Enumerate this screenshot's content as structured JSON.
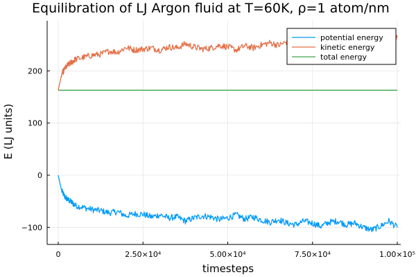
{
  "chart_data": {
    "type": "line",
    "title": "Equilibration of LJ Argon fluid at T=60K, ρ=1 atom/nm",
    "xlabel": "timesteps",
    "ylabel": "E (LJ units)",
    "xlim": [
      0,
      100000
    ],
    "ylim": [
      -130,
      295
    ],
    "grid": true,
    "legend_position": "top-right",
    "x_ticks": [
      {
        "value": 0,
        "label": "0"
      },
      {
        "value": 25000,
        "label": "2.50×10⁴"
      },
      {
        "value": 50000,
        "label": "5.00×10⁴"
      },
      {
        "value": 75000,
        "label": "7.50×10⁴"
      },
      {
        "value": 100000,
        "label": "1.00×10⁵"
      }
    ],
    "y_ticks": [
      {
        "value": -100,
        "label": "−100"
      },
      {
        "value": 0,
        "label": "0"
      },
      {
        "value": 100,
        "label": "100"
      },
      {
        "value": 200,
        "label": "200"
      }
    ],
    "x": [
      0,
      1000,
      2000,
      3000,
      4000,
      5000,
      7500,
      10000,
      12500,
      15000,
      17500,
      20000,
      22500,
      25000,
      27500,
      30000,
      32500,
      35000,
      37500,
      40000,
      42500,
      45000,
      47500,
      50000,
      52500,
      55000,
      57500,
      60000,
      62500,
      65000,
      67500,
      70000,
      72500,
      75000,
      77500,
      80000,
      82500,
      85000,
      87500,
      90000,
      92500,
      95000,
      97500,
      100000
    ],
    "series": [
      {
        "name": "potential energy",
        "color": "#009AFA",
        "values": [
          0,
          -30,
          -42,
          -48,
          -52,
          -58,
          -62,
          -66,
          -68,
          -72,
          -70,
          -78,
          -74,
          -75,
          -80,
          -76,
          -82,
          -80,
          -88,
          -82,
          -78,
          -80,
          -85,
          -82,
          -76,
          -84,
          -80,
          -86,
          -90,
          -85,
          -92,
          -95,
          -88,
          -92,
          -98,
          -90,
          -88,
          -95,
          -92,
          -100,
          -105,
          -98,
          -88,
          -100
        ]
      },
      {
        "name": "kinetic energy",
        "color": "#E36F47",
        "values": [
          163,
          193,
          205,
          212,
          217,
          222,
          226,
          230,
          232,
          238,
          236,
          245,
          240,
          242,
          244,
          240,
          246,
          244,
          252,
          246,
          242,
          244,
          249,
          246,
          240,
          248,
          244,
          250,
          254,
          249,
          256,
          259,
          252,
          256,
          262,
          254,
          252,
          259,
          256,
          264,
          269,
          262,
          252,
          264
        ]
      },
      {
        "name": "total energy",
        "color": "#3EA44E",
        "values": [
          163,
          163,
          163,
          163,
          163,
          163,
          163,
          163,
          163,
          163,
          163,
          163,
          163,
          163,
          163,
          163,
          163,
          163,
          163,
          163,
          163,
          163,
          163,
          163,
          163,
          163,
          163,
          163,
          163,
          163,
          163,
          163,
          163,
          163,
          163,
          163,
          163,
          163,
          163,
          163,
          163,
          163,
          163,
          163
        ]
      }
    ]
  }
}
